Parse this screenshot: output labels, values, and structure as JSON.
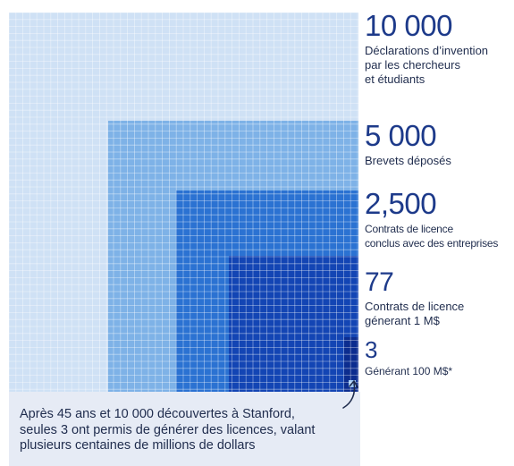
{
  "colors": {
    "level1": "#cfe1f5",
    "level2": "#7eb2e7",
    "level3": "#2b72d2",
    "level4": "#1345b4",
    "level5": "#0c2d8f",
    "grid": "#ffffff",
    "number": "#1d3a8a",
    "text": "#1f2c4d",
    "caption_bg": "#e6ebf5"
  },
  "chart_data": {
    "type": "nested-square",
    "items": [
      {
        "value": 10000,
        "number_label": "10 000",
        "label": "Déclarations d’invention\npar les chercheurs\net étudiants"
      },
      {
        "value": 5000,
        "number_label": "5 000",
        "label": "Brevets déposés"
      },
      {
        "value": 2500,
        "number_label": "2,500",
        "label": "Contrats de licence\nconclus avec des entreprises"
      },
      {
        "value": 77,
        "number_label": "77",
        "label": "Contrats de licence\ngénerant 1 M$"
      },
      {
        "value": 3,
        "number_label": "3",
        "label": "Générant 100 M$*"
      }
    ]
  },
  "caption": {
    "text": "Après 45 ans et 10 000 découvertes à Stanford,\nseules 3 ont permis de générer des licences, valant\nplusieurs centaines de millions de dollars"
  },
  "icons": {
    "annotation_arrow": "curved-arrow-icon"
  }
}
